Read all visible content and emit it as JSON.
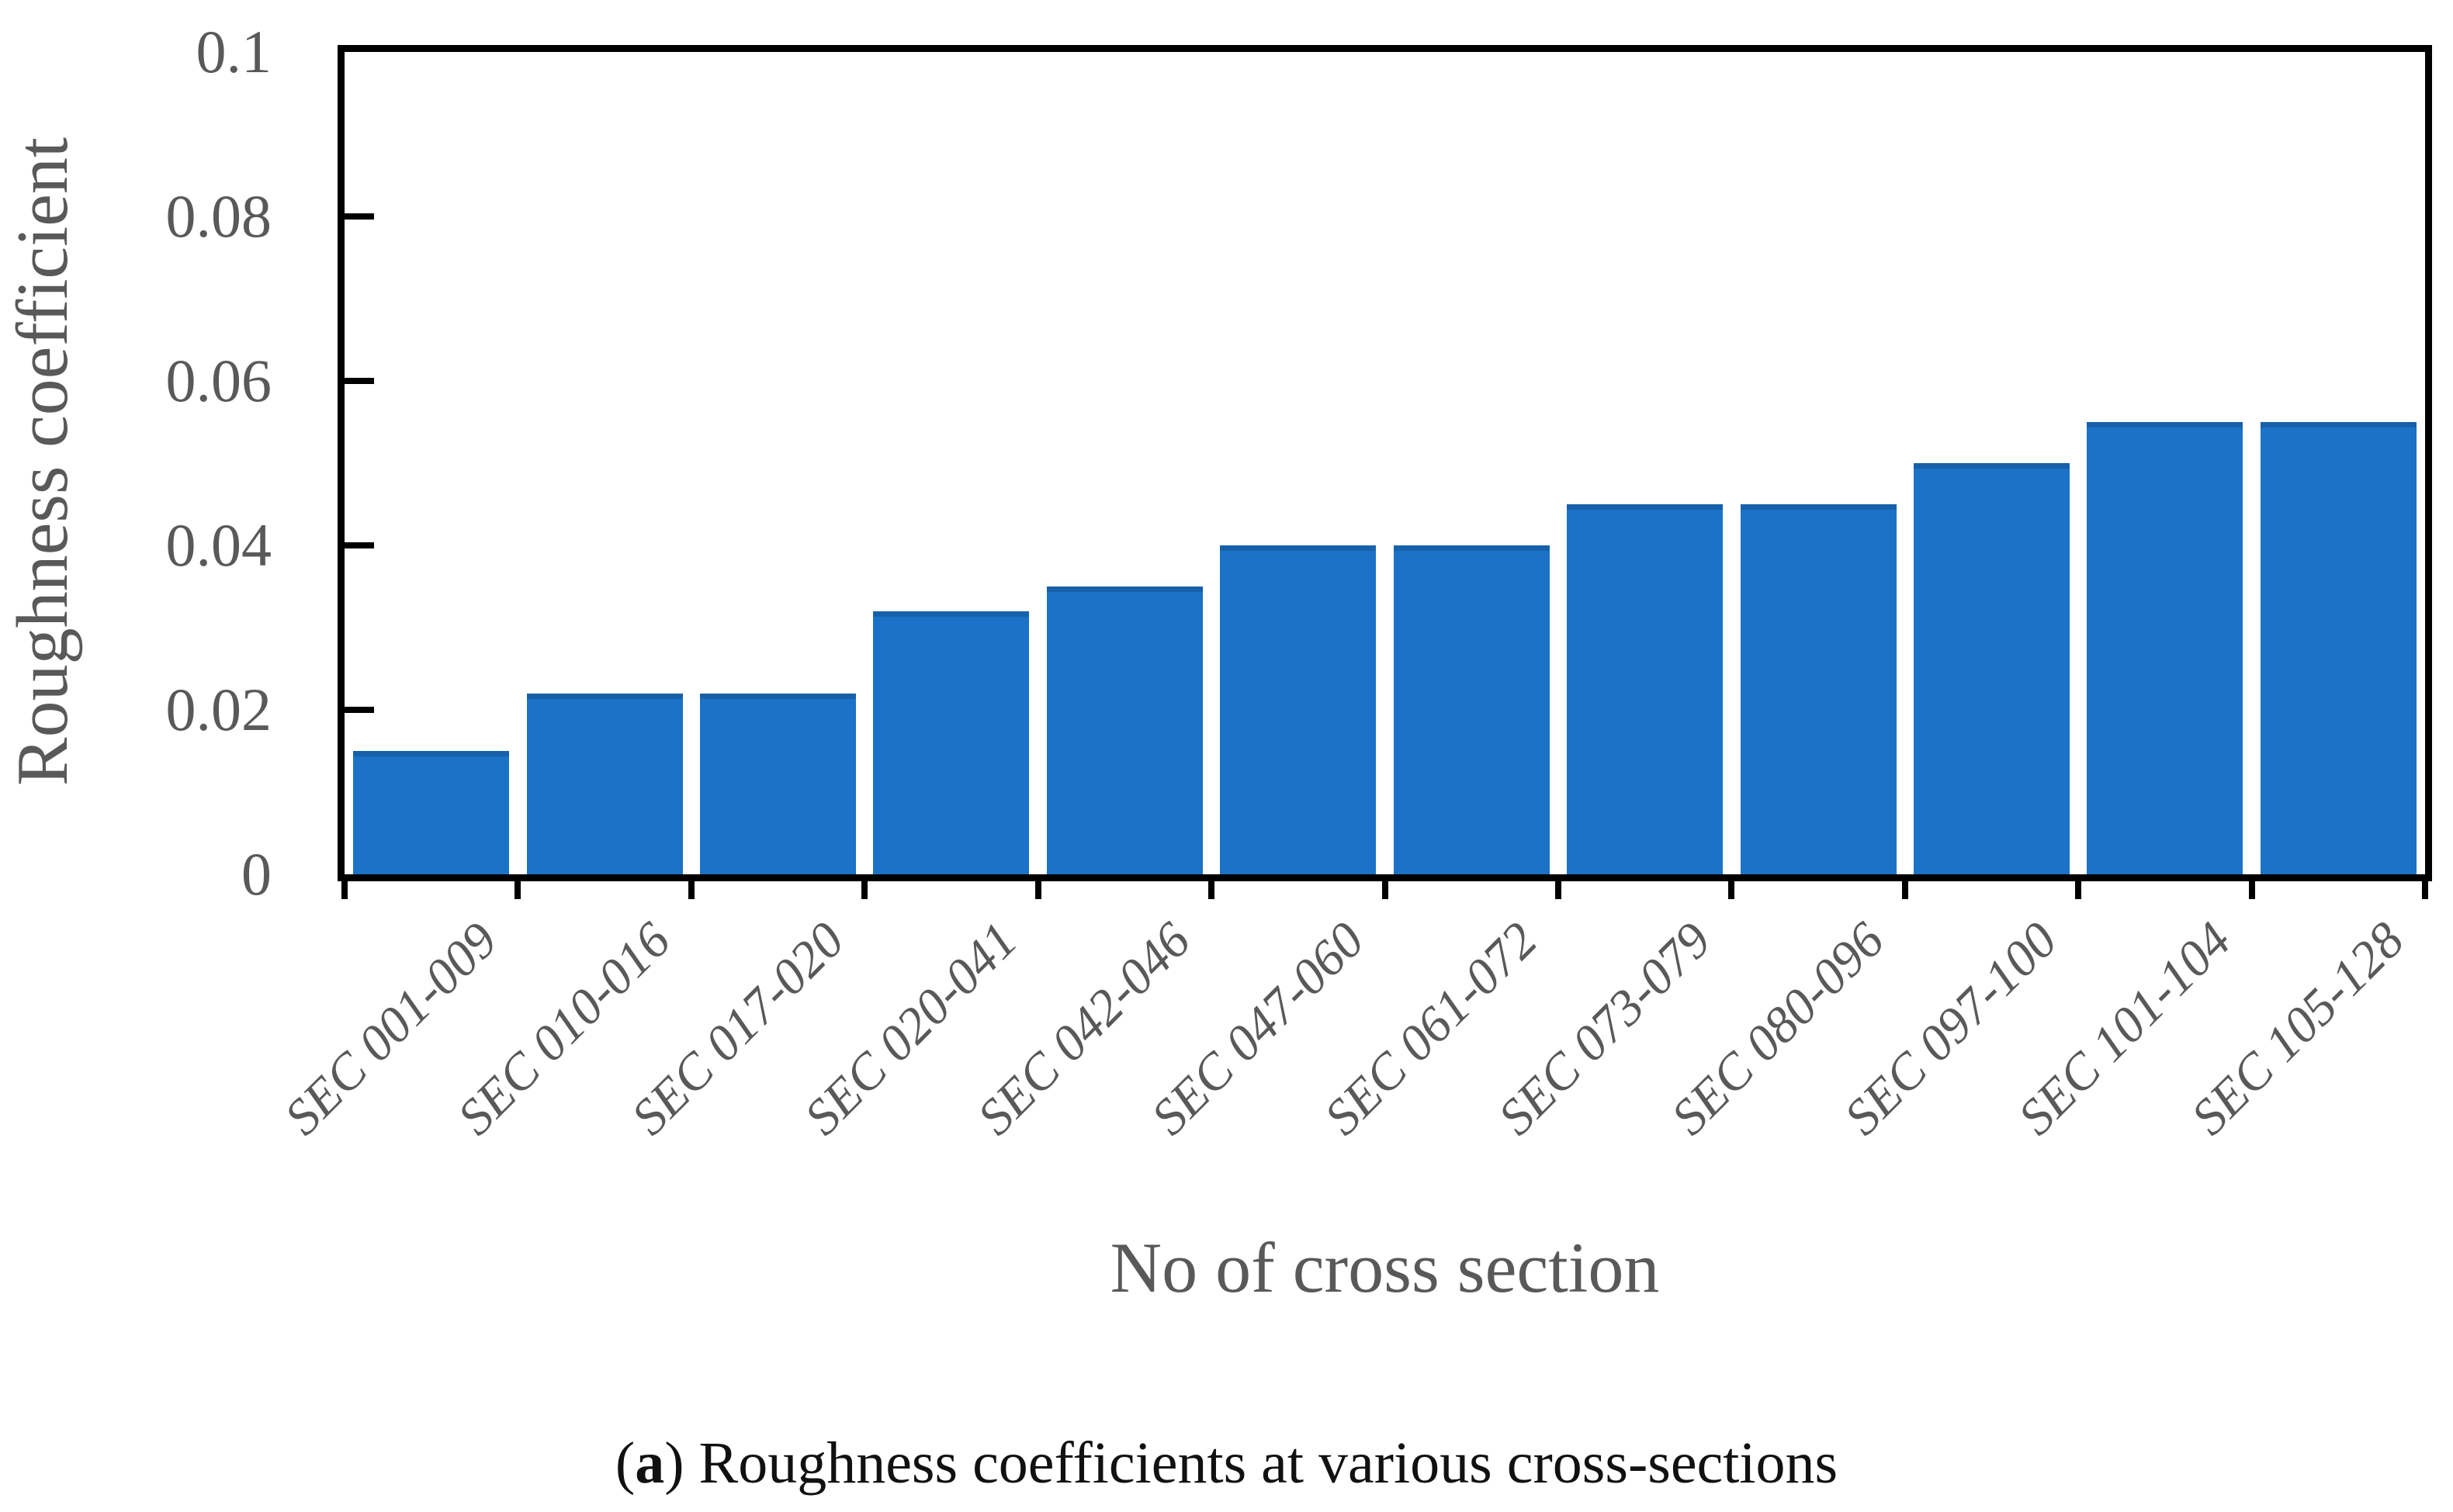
{
  "chart_data": {
    "type": "bar",
    "title": "",
    "categories": [
      "SEC 001-009",
      "SEC 010-016",
      "SEC 017-020",
      "SEC 020-041",
      "SEC 042-046",
      "SEC 047-060",
      "SEC 061-072",
      "SEC 073-079",
      "SEC 080-096",
      "SEC 097-100",
      "SEC 101-104",
      "SEC 105-128"
    ],
    "values": [
      0.015,
      0.022,
      0.022,
      0.032,
      0.035,
      0.04,
      0.04,
      0.045,
      0.045,
      0.05,
      0.055,
      0.055
    ],
    "xlabel": "No of cross section",
    "ylabel": "Roughness coefficient",
    "ylim": [
      0,
      0.1
    ],
    "yticks": [
      0,
      0.02,
      0.04,
      0.06,
      0.08,
      0.1
    ],
    "ytick_labels": [
      "0",
      "0.02",
      "0.04",
      "0.06",
      "0.08",
      "0.1"
    ],
    "grid": false,
    "legend_position": "none",
    "bar_color": "#1b72c6",
    "axis_color": "#000000",
    "label_color": "#595959"
  },
  "caption": {
    "open": "(",
    "letter": "a",
    "rest": ") Roughness coefficients at various cross-sections"
  }
}
